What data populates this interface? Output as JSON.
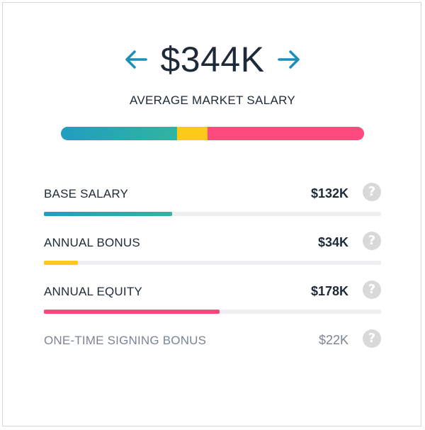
{
  "header": {
    "total": "$344K",
    "subtitle": "AVERAGE MARKET SALARY"
  },
  "colors": {
    "base": "#1f9ec0",
    "base_gradient_end": "#2fb5a0",
    "bonus": "#ffc91a",
    "equity": "#ff4a7d",
    "arrow": "#1b8fb5"
  },
  "icons": {
    "prev": "arrow-left-icon",
    "next": "arrow-right-icon",
    "help": "question-circle-icon"
  },
  "total_value_k": 344,
  "components": [
    {
      "label": "BASE SALARY",
      "value": "$132K",
      "amount_k": 132,
      "bar_fraction": 0.38,
      "color": "base"
    },
    {
      "label": "ANNUAL BONUS",
      "value": "$34K",
      "amount_k": 34,
      "bar_fraction": 0.1,
      "color": "bonus"
    },
    {
      "label": "ANNUAL EQUITY",
      "value": "$178K",
      "amount_k": 178,
      "bar_fraction": 0.52,
      "color": "equity"
    },
    {
      "label": "ONE-TIME SIGNING BONUS",
      "value": "$22K",
      "amount_k": 22,
      "bar_fraction": null,
      "color": null
    }
  ],
  "help_glyph": "?"
}
